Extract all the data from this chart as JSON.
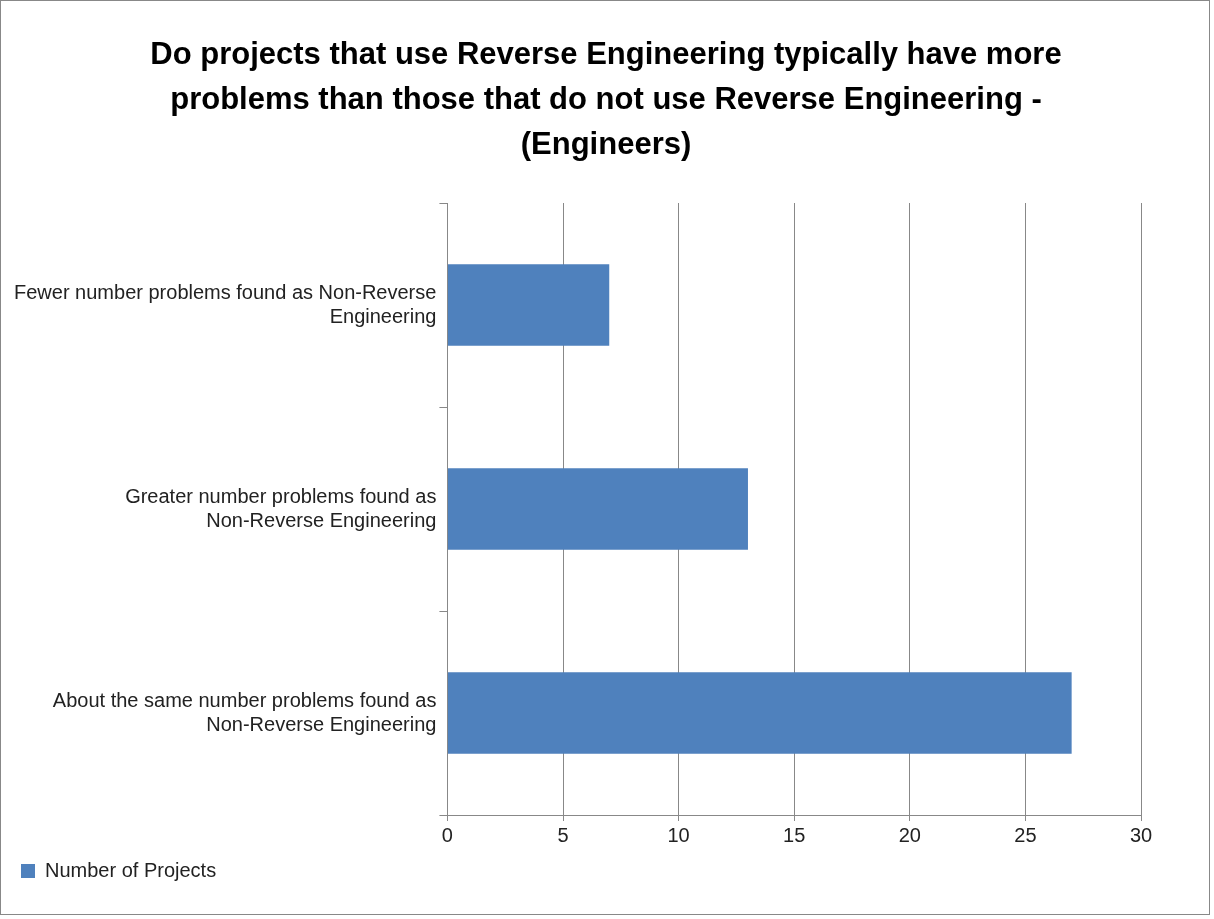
{
  "chart_data": {
    "type": "bar",
    "orientation": "horizontal",
    "title": "Do projects that use Reverse Engineering typically have more problems than those that do not use Reverse Engineering  - (Engineers)",
    "categories": [
      "Fewer number problems found as Non-Reverse Engineering",
      "Greater number problems found as Non-Reverse Engineering",
      "About the same number problems found as Non-Reverse Engineering"
    ],
    "series": [
      {
        "name": "Number of Projects",
        "color": "#4f81bd",
        "values": [
          7,
          13,
          27
        ]
      }
    ],
    "xlim": [
      0,
      30
    ],
    "xticks": [
      0,
      5,
      10,
      15,
      20,
      25,
      30
    ],
    "grid": "x",
    "legend": "bottom left"
  }
}
